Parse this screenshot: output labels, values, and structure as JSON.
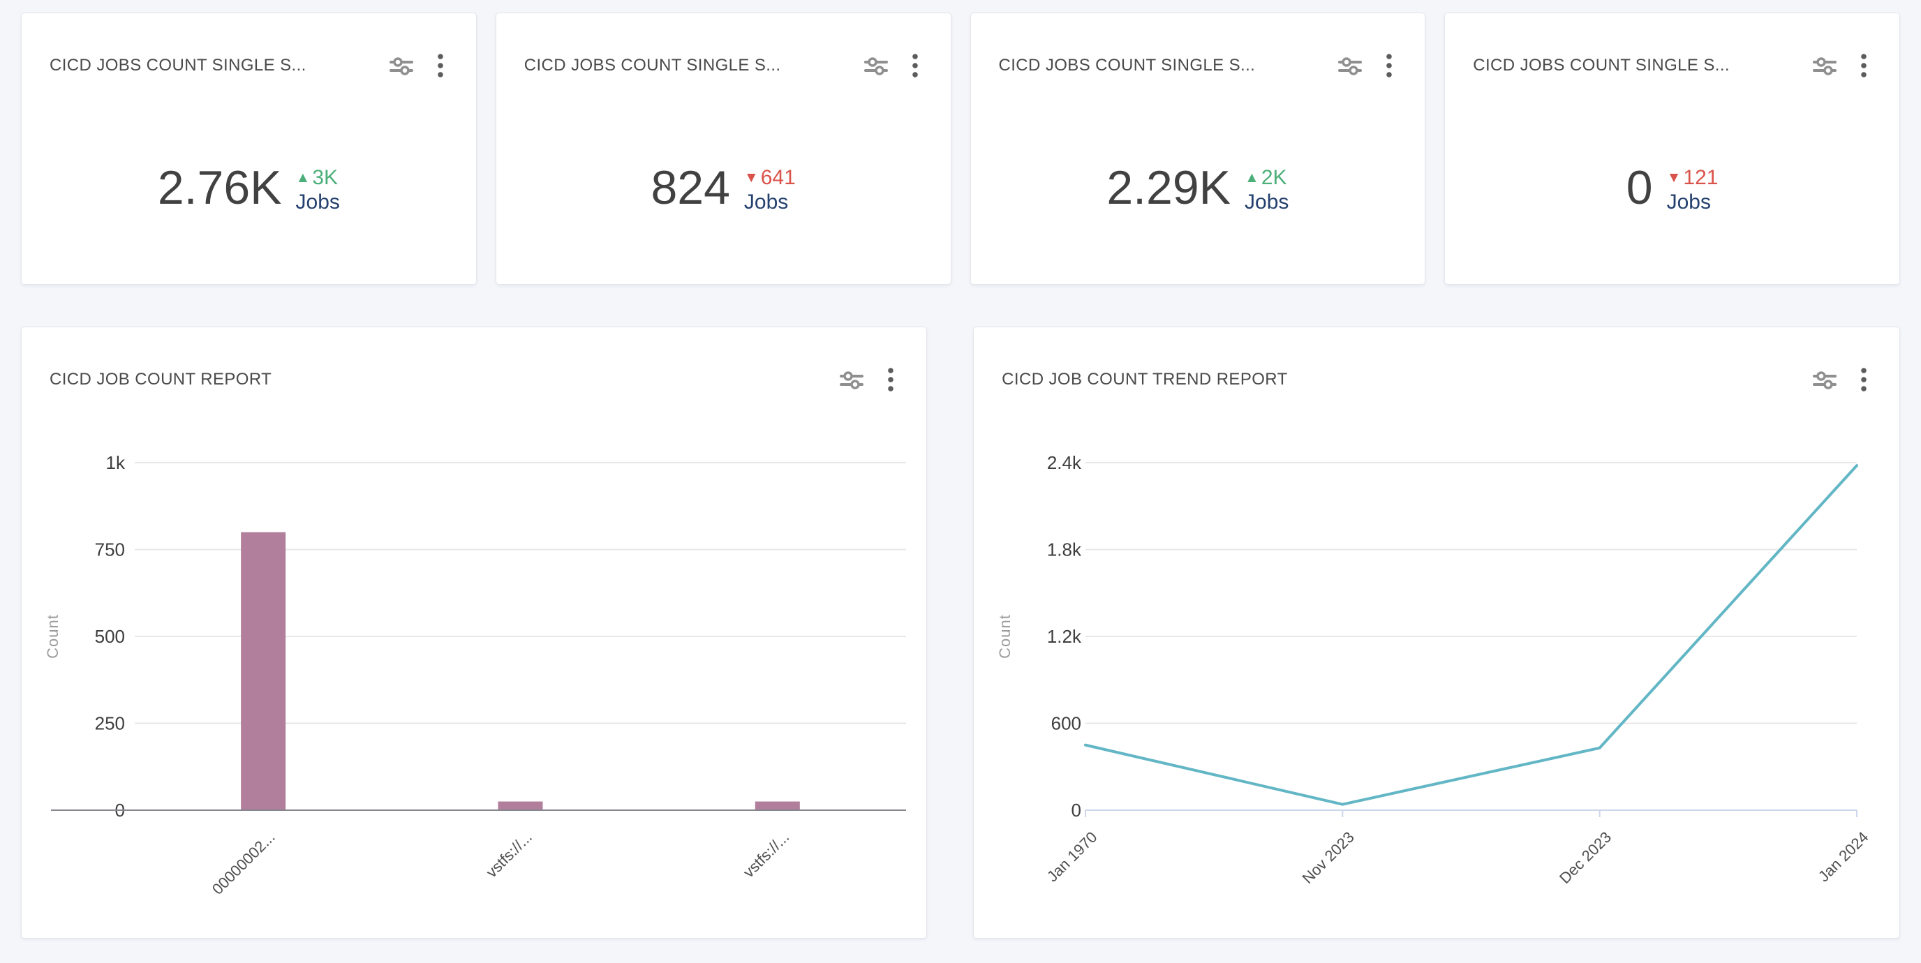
{
  "stat_cards": [
    {
      "title": "CICD JOBS COUNT SINGLE S...",
      "value": "2.76K",
      "delta": "3K",
      "direction": "up",
      "unit": "Jobs"
    },
    {
      "title": "CICD JOBS COUNT SINGLE S...",
      "value": "824",
      "delta": "641",
      "direction": "down",
      "unit": "Jobs"
    },
    {
      "title": "CICD JOBS COUNT SINGLE S...",
      "value": "2.29K",
      "delta": "2K",
      "direction": "up",
      "unit": "Jobs"
    },
    {
      "title": "CICD JOBS COUNT SINGLE S...",
      "value": "0",
      "delta": "121",
      "direction": "down",
      "unit": "Jobs"
    }
  ],
  "icons": {
    "filter": "sliders-filter-icon",
    "menu": "kebab-menu-icon",
    "delta_up": "▲",
    "delta_down": "▼"
  },
  "colors": {
    "up": "#4caf7a",
    "down": "#d9534a",
    "unit": "#24406e",
    "bar": "#b17f9c",
    "line": "#62b6c5",
    "grid": "#e7e7e7",
    "bar_axis": "#86868f",
    "line_axis": "#ccd6eb",
    "ytick_text": "#3e3e3e",
    "xtick_text": "#4e4e4e",
    "axis_title_text": "#9b9b9b",
    "page_background": "#f5f6fa"
  },
  "chart_data": [
    {
      "type": "bar",
      "title": "CICD JOB COUNT REPORT",
      "ylabel": "Count",
      "categories": [
        "00000002...",
        "vstfs://...",
        "vstfs://..."
      ],
      "values": [
        800,
        25,
        25
      ],
      "ylim": [
        0,
        1000
      ],
      "yticks": {
        "values": [
          0,
          250,
          500,
          750,
          1000
        ],
        "labels": [
          "0",
          "250",
          "500",
          "750",
          "1k"
        ]
      },
      "grid": true,
      "legend": false
    },
    {
      "type": "line",
      "title": "CICD JOB COUNT TREND REPORT",
      "ylabel": "Count",
      "categories": [
        "Jan 1970",
        "Nov 2023",
        "Dec 2023",
        "Jan 2024"
      ],
      "values": [
        450,
        40,
        430,
        2380
      ],
      "ylim": [
        0,
        2400
      ],
      "yticks": {
        "values": [
          0,
          600,
          1200,
          1800,
          2400
        ],
        "labels": [
          "0",
          "600",
          "1.2k",
          "1.8k",
          "2.4k"
        ]
      },
      "grid": true,
      "legend": false
    }
  ]
}
